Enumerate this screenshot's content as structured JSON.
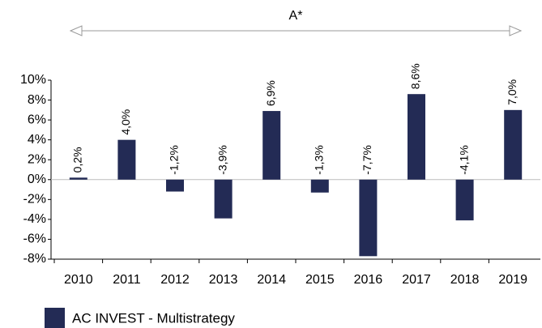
{
  "chart_data": {
    "type": "bar",
    "annotation": "A*",
    "categories": [
      "2010",
      "2011",
      "2012",
      "2013",
      "2014",
      "2015",
      "2016",
      "2017",
      "2018",
      "2019"
    ],
    "series": [
      {
        "name": "AC INVEST - Multistrategy",
        "color": "#232b55",
        "values": [
          0.2,
          4.0,
          -1.2,
          -3.9,
          6.9,
          -1.3,
          -7.7,
          8.6,
          -4.1,
          7.0
        ],
        "value_labels": [
          "0,2%",
          "4,0%",
          "-1,2%",
          "-3,9%",
          "6,9%",
          "-1,3%",
          "-7,7%",
          "8,6%",
          "-4,1%",
          "7,0%"
        ]
      }
    ],
    "ylim": [
      -8,
      10
    ],
    "yticks": [
      {
        "value": -8,
        "label": "-8%"
      },
      {
        "value": -6,
        "label": "-6%"
      },
      {
        "value": -4,
        "label": "-4%"
      },
      {
        "value": -2,
        "label": "-2%"
      },
      {
        "value": 0,
        "label": "0%"
      },
      {
        "value": 2,
        "label": "2%"
      },
      {
        "value": 4,
        "label": "4%"
      },
      {
        "value": 6,
        "label": "6%"
      },
      {
        "value": 8,
        "label": "8%"
      },
      {
        "value": 10,
        "label": "10%"
      }
    ],
    "legend": "bottom-left"
  }
}
